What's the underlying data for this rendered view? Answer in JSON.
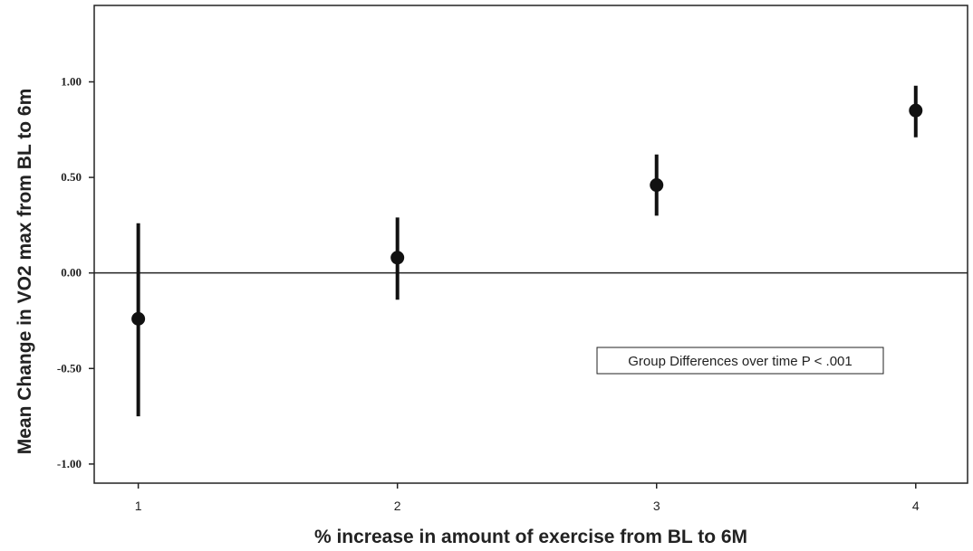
{
  "chart_data": {
    "type": "scatter",
    "x": [
      1,
      2,
      3,
      4
    ],
    "series": [
      {
        "mean": [
          -0.24,
          0.08,
          0.46,
          0.85
        ],
        "ci_lower": [
          -0.75,
          -0.14,
          0.3,
          0.71
        ],
        "ci_upper": [
          0.26,
          0.29,
          0.62,
          0.98
        ]
      }
    ],
    "x_ticks": [
      "1",
      "2",
      "3",
      "4"
    ],
    "y_ticks": [
      "-1.00",
      "-0.50",
      "0.00",
      "0.50",
      "1.00"
    ],
    "y_tick_values": [
      -1.0,
      -0.5,
      0.0,
      0.5,
      1.0
    ],
    "xlabel": "% increase in amount of exercise from BL to 6M",
    "ylabel": "Mean Change in VO2 max from BL to 6m",
    "xlim": [
      0.83,
      4.2
    ],
    "ylim": [
      -1.1,
      1.4
    ],
    "reference_line_y": 0,
    "annotation": "Group Differences over time P < .001",
    "grid": false,
    "colors": {
      "marker": "#111111",
      "axis": "#222222",
      "background": "#ffffff"
    }
  }
}
